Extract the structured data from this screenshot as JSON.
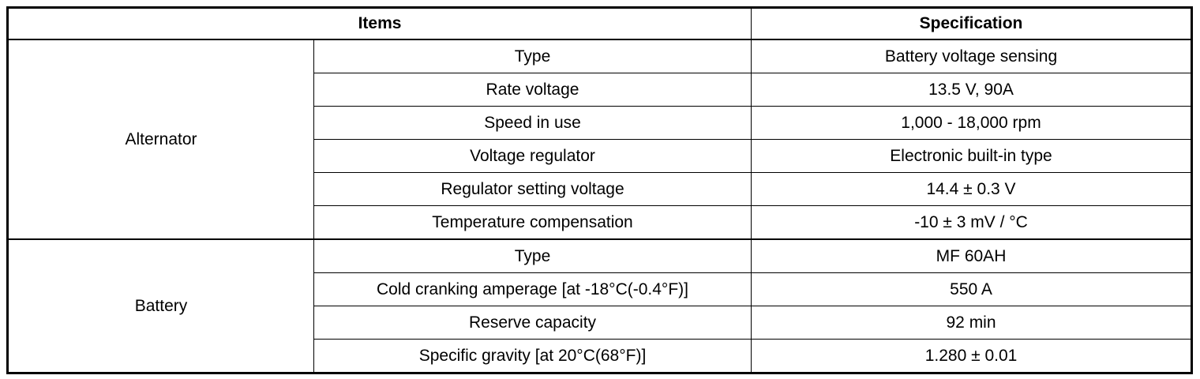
{
  "table": {
    "header": [
      "Items",
      "Specification"
    ],
    "groups": [
      {
        "name": "Alternator",
        "rows": [
          [
            "Type",
            "Battery voltage sensing"
          ],
          [
            "Rate voltage",
            "13.5 V, 90A"
          ],
          [
            "Speed in use",
            "1,000 - 18,000 rpm"
          ],
          [
            "Voltage regulator",
            "Electronic built-in type"
          ],
          [
            "Regulator setting voltage",
            "14.4 ± 0.3 V"
          ],
          [
            "Temperature compensation",
            "-10 ± 3 mV / °C"
          ]
        ]
      },
      {
        "name": "Battery",
        "rows": [
          [
            "Type",
            "MF 60AH"
          ],
          [
            "Cold cranking amperage [at -18°C(-0.4°F)]",
            "550 A"
          ],
          [
            "Reserve capacity",
            "92 min"
          ],
          [
            "Specific gravity [at 20°C(68°F)]",
            "1.280 ± 0.01"
          ]
        ]
      }
    ]
  }
}
